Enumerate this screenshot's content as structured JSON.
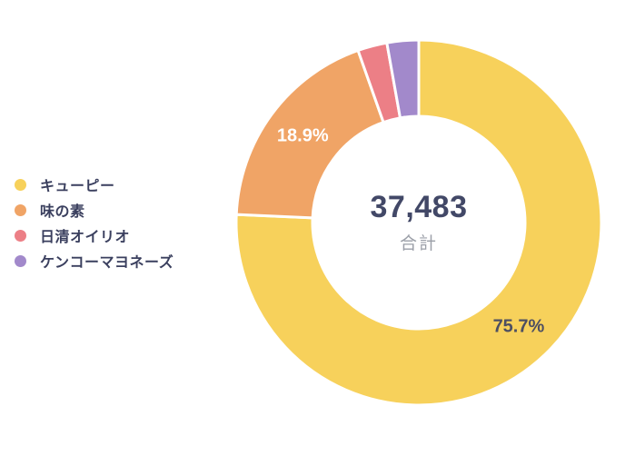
{
  "page": {
    "background": "#FFFFFF"
  },
  "chart_data": {
    "type": "pie",
    "subtype": "donut",
    "title": "",
    "total": 37483,
    "total_display": "37,483",
    "total_label": "合計",
    "legend_position": "left",
    "start_angle_deg": 0,
    "direction": "clockwise",
    "inner_radius_ratio": 0.58,
    "gap_color": "#FFFFFF",
    "segments": [
      {
        "slug": "kewpie",
        "name": "キューピー",
        "percent": 75.7,
        "color": "#F7D15B",
        "data_label": "75.7%",
        "data_label_color": "#4D4F62",
        "show_label": true
      },
      {
        "slug": "ajinomoto",
        "name": "味の素",
        "percent": 18.9,
        "color": "#F0A466",
        "data_label": "18.9%",
        "data_label_color": "#FFFFFF",
        "show_label": true
      },
      {
        "slug": "nisshin-oillio",
        "name": "日清オイリオ",
        "percent": 2.6,
        "color": "#EC7F86",
        "data_label": "",
        "data_label_color": "",
        "show_label": false
      },
      {
        "slug": "kenko-mayonnaise",
        "name": "ケンコーマヨネーズ",
        "percent": 2.8,
        "color": "#A289CB",
        "data_label": "",
        "data_label_color": "",
        "show_label": false
      }
    ],
    "text_colors": {
      "total_value": "#424867",
      "total_caption": "#9B9FA8",
      "legend_label": "#3A3F5E"
    }
  }
}
